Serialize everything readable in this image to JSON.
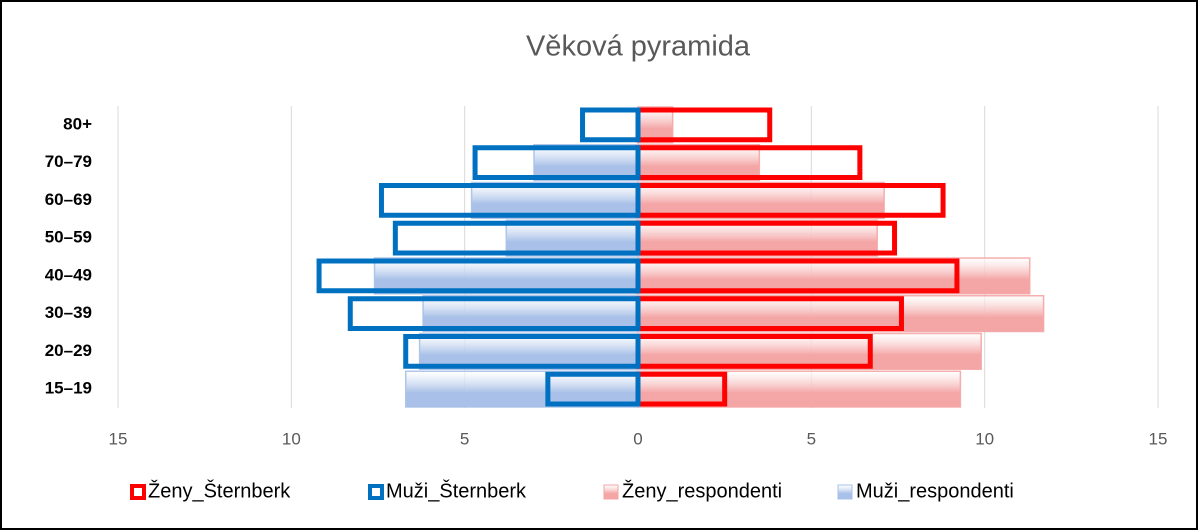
{
  "chart_data": {
    "type": "pyramid",
    "title": "Věková pyramida",
    "categories": [
      "80+",
      "70–79",
      "60–69",
      "50–59",
      "40–49",
      "30–39",
      "20–29",
      "15–19"
    ],
    "series": [
      {
        "name": "Ženy_respondenti",
        "color": "#f4a6a6",
        "outline": false,
        "values": [
          1.0,
          3.5,
          7.1,
          6.9,
          11.3,
          11.7,
          9.9,
          9.3
        ]
      },
      {
        "name": "Muži_respondenti",
        "color": "#a9c1e8",
        "outline": false,
        "values": [
          0,
          -3.0,
          -4.8,
          -3.8,
          -7.6,
          -6.2,
          -6.3,
          -6.7
        ]
      },
      {
        "name": "Ženy_Šternberk",
        "color": "#ff0000",
        "outline": true,
        "values": [
          3.8,
          6.4,
          8.8,
          7.4,
          9.2,
          7.6,
          6.7,
          2.5
        ]
      },
      {
        "name": "Muži_Šternberk",
        "color": "#0070c0",
        "outline": true,
        "values": [
          -1.6,
          -4.7,
          -7.4,
          -7.0,
          -9.2,
          -8.3,
          -6.7,
          -2.6
        ]
      }
    ],
    "legend_order": [
      2,
      3,
      0,
      1
    ],
    "xlim": [
      -15,
      15
    ],
    "xticks": [
      {
        "value": -15,
        "label": "15"
      },
      {
        "value": -10,
        "label": "10"
      },
      {
        "value": -5,
        "label": "5"
      },
      0,
      5,
      10,
      15
    ],
    "grid": true
  }
}
